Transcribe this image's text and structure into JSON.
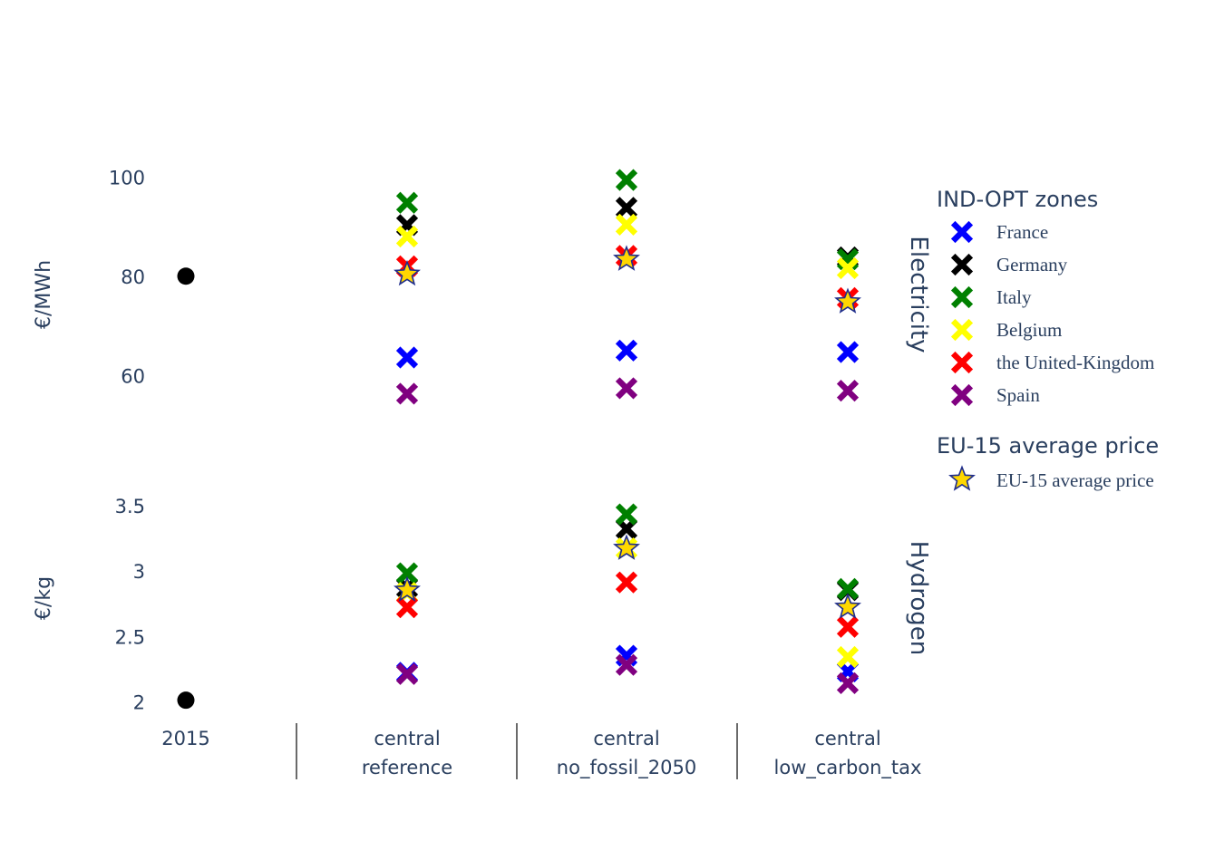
{
  "chart_data": {
    "type": "scatter",
    "categories": [
      {
        "line1": "2015",
        "line2": ""
      },
      {
        "line1": "central",
        "line2": "reference"
      },
      {
        "line1": "central",
        "line2": "no_fossil_2050"
      },
      {
        "line1": "central",
        "line2": "low_carbon_tax"
      }
    ],
    "panels": [
      {
        "id": "electricity",
        "title": "Electricity",
        "ylabel": "€/MWh",
        "ylim": [
          50,
          103
        ],
        "yticks": [
          60,
          80,
          100
        ],
        "ytick_labels": [
          "60",
          "80",
          "100"
        ],
        "historical": {
          "category": 0,
          "value": 80.2
        },
        "series": [
          {
            "name": "France",
            "values": [
              null,
              63.8,
              65.2,
              64.9
            ]
          },
          {
            "name": "Germany",
            "values": [
              null,
              90.5,
              94.0,
              84.0
            ]
          },
          {
            "name": "Italy",
            "values": [
              null,
              95.0,
              99.6,
              83.6
            ]
          },
          {
            "name": "Belgium",
            "values": [
              null,
              88.2,
              90.6,
              81.8
            ]
          },
          {
            "name": "the United-Kingdom",
            "values": [
              null,
              82.2,
              84.3,
              75.8
            ]
          },
          {
            "name": "Spain",
            "values": [
              null,
              56.5,
              57.6,
              57.1
            ]
          }
        ],
        "average": [
          null,
          80.6,
          83.6,
          75.0
        ]
      },
      {
        "id": "hydrogen",
        "title": "Hydrogen",
        "ylabel": "€/kg",
        "ylim": [
          1.9,
          3.7
        ],
        "yticks": [
          2,
          2.5,
          3,
          3.5
        ],
        "ytick_labels": [
          "2",
          "2.5",
          "3",
          "3.5"
        ],
        "historical": {
          "category": 0,
          "value": 2.02
        },
        "series": [
          {
            "name": "France",
            "values": [
              null,
              2.23,
              2.36,
              2.24
            ]
          },
          {
            "name": "Germany",
            "values": [
              null,
              2.88,
              3.33,
              2.86
            ]
          },
          {
            "name": "Italy",
            "values": [
              null,
              2.99,
              3.44,
              2.87
            ]
          },
          {
            "name": "Belgium",
            "values": [
              null,
              2.84,
              3.18,
              2.35
            ]
          },
          {
            "name": "the United-Kingdom",
            "values": [
              null,
              2.73,
              2.92,
              2.58
            ]
          },
          {
            "name": "Spain",
            "values": [
              null,
              2.22,
              2.29,
              2.15
            ]
          }
        ],
        "average": [
          null,
          2.86,
          3.18,
          2.73
        ]
      }
    ],
    "legend": {
      "zones_title": "IND-OPT zones",
      "zones": [
        {
          "name": "France",
          "color": "#0000ff"
        },
        {
          "name": "Germany",
          "color": "#000000"
        },
        {
          "name": "Italy",
          "color": "#008000"
        },
        {
          "name": "Belgium",
          "color": "#ffff00"
        },
        {
          "name": "the United-Kingdom",
          "color": "#ff0000"
        },
        {
          "name": "Spain",
          "color": "#800080"
        }
      ],
      "avg_title": "EU-15 average price",
      "avg_label": "EU-15 average price",
      "avg_color": "#ffd700",
      "avg_outline": "#1f2d8c"
    },
    "historical_color": "#000000"
  }
}
